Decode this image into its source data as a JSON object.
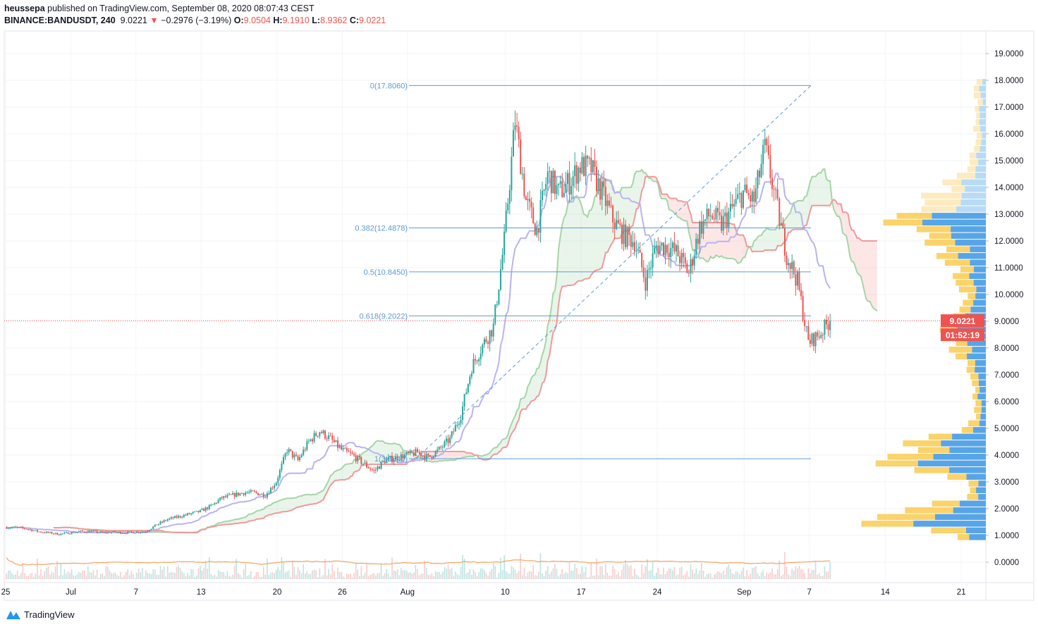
{
  "header": {
    "publisher": "heussepa",
    "published_text": "published on TradingView.com, September 08, 2020 08:07:43 CEST",
    "symbol": "BINANCE:BANDUSDT, 240",
    "last": "9.0221",
    "change": "−0.2976 (−3.19%)",
    "o_label": "O:",
    "o": "9.0504",
    "h_label": "H:",
    "h": "9.1910",
    "l_label": "L:",
    "l": "8.9362",
    "c_label": "C:",
    "c": "9.0221"
  },
  "price_badge": "9.0221",
  "countdown_badge": "01:52:19",
  "brand": "TradingView",
  "colors": {
    "up": "#26a69a",
    "down": "#ef5350",
    "fib": "#5b9bd5",
    "base": "#b8b4f0",
    "span_a": "#a5d6a7",
    "span_b": "#ef9a9a",
    "ma": "#f7a35c",
    "vp_buy": "#4ea0e6",
    "vp_sell": "#f9ce5b"
  },
  "chart_data": {
    "type": "candlestick",
    "title": "BINANCE:BANDUSDT, 240",
    "interval": "4h",
    "ylim": [
      0,
      19
    ],
    "y_ticks": [
      "19.0000",
      "18.0000",
      "17.0000",
      "16.0000",
      "15.0000",
      "14.0000",
      "13.0000",
      "12.0000",
      "11.0000",
      "10.0000",
      "9.0000",
      "8.0000",
      "7.0000",
      "6.0000",
      "5.0000",
      "4.0000",
      "3.0000",
      "2.0000",
      "1.0000",
      "0.0000"
    ],
    "x_ticks": [
      {
        "label": "25",
        "day": 0
      },
      {
        "label": "Jul",
        "day": 6
      },
      {
        "label": "7",
        "day": 12
      },
      {
        "label": "13",
        "day": 18
      },
      {
        "label": "20",
        "day": 25
      },
      {
        "label": "26",
        "day": 31
      },
      {
        "label": "Aug",
        "day": 37
      },
      {
        "label": "10",
        "day": 46
      },
      {
        "label": "17",
        "day": 53
      },
      {
        "label": "24",
        "day": 60
      },
      {
        "label": "Sep",
        "day": 68
      },
      {
        "label": "7",
        "day": 74
      },
      {
        "label": "14",
        "day": 81
      },
      {
        "label": "21",
        "day": 88
      }
    ],
    "daily_close_approx": [
      1.3,
      1.25,
      1.15,
      1.1,
      1.05,
      1.1,
      1.15,
      1.15,
      1.1,
      1.12,
      1.1,
      1.12,
      1.15,
      1.4,
      1.6,
      1.7,
      1.8,
      1.9,
      2.1,
      2.4,
      2.5,
      2.6,
      2.6,
      2.5,
      3.0,
      4.2,
      3.8,
      4.5,
      4.9,
      4.6,
      4.2,
      4.0,
      3.7,
      3.4,
      3.8,
      3.9,
      4.0,
      4.1,
      3.9,
      4.2,
      4.6,
      5.5,
      7.3,
      8.1,
      8.8,
      12.0,
      16.5,
      13.5,
      12.4,
      14.5,
      13.8,
      14.2,
      14.8,
      14.7,
      13.8,
      12.8,
      12.2,
      12.0,
      10.5,
      11.8,
      11.8,
      11.5,
      10.8,
      12.5,
      13.0,
      12.6,
      13.2,
      13.8,
      13.5,
      15.5,
      13.5,
      11.5,
      10.5,
      8.2,
      8.5,
      9.0221
    ],
    "fib_levels": [
      {
        "label": "0(17.8060)",
        "value": 17.806
      },
      {
        "label": "0.382(12.4878)",
        "value": 12.4878
      },
      {
        "label": "0.5(10.8450)",
        "value": 10.845
      },
      {
        "label": "0.618(9.2022)",
        "value": 9.2022
      },
      {
        "label": "1(3.8640)",
        "value": 3.864
      }
    ],
    "last_price": 9.0221
  }
}
